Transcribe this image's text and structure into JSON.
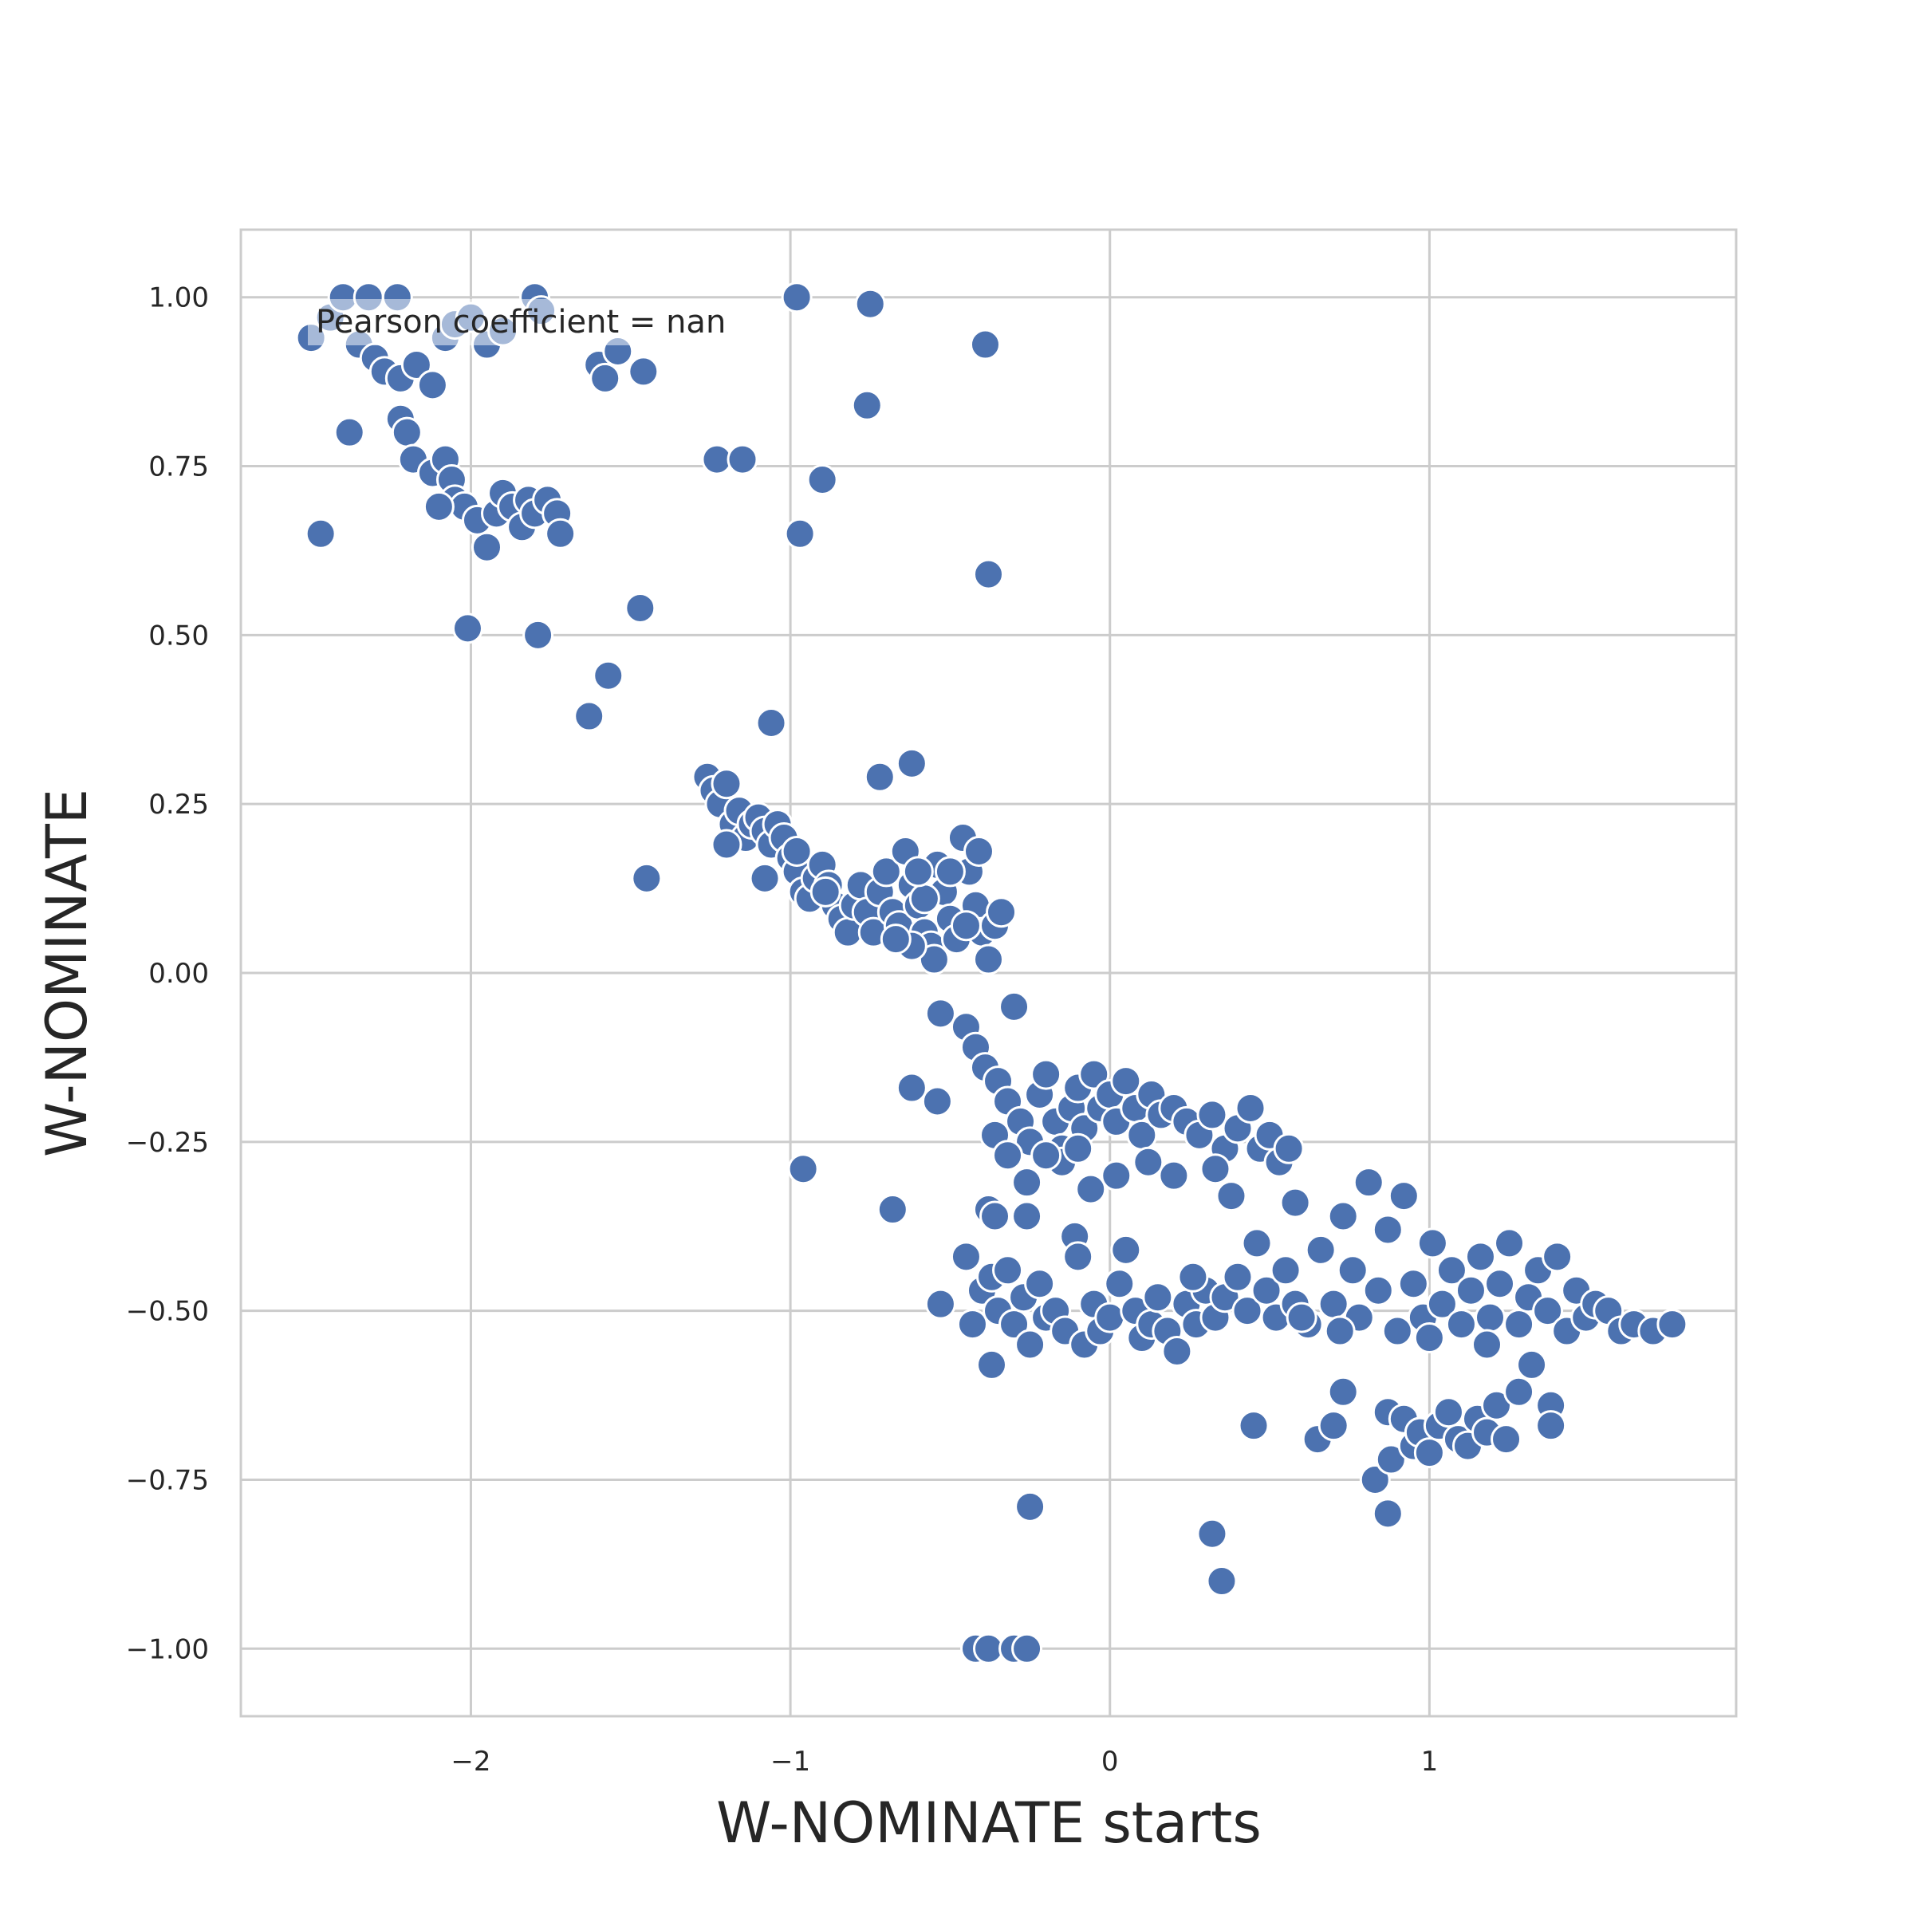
{
  "chart_data": {
    "type": "scatter",
    "xlabel": "W-NOMINATE starts",
    "ylabel": "W-NOMINATE",
    "annotation": "Pearson coefficient = nan",
    "xlim": [
      -2.72,
      1.96
    ],
    "ylim": [
      -1.1,
      1.1
    ],
    "xticks": [
      -2,
      -1,
      0,
      1
    ],
    "xtick_labels": [
      "−2",
      "−1",
      "0",
      "1"
    ],
    "yticks": [
      1.0,
      0.75,
      0.5,
      0.25,
      0.0,
      -0.25,
      -0.5,
      -0.75,
      -1.0
    ],
    "ytick_labels": [
      "1.00",
      "0.75",
      "0.50",
      "0.25",
      "0.00",
      "−0.25",
      "−0.50",
      "−0.75",
      "−1.00"
    ],
    "grid": true,
    "colors": {
      "points": "#4c72b0",
      "grid": "#cccccc",
      "axes_frame": "#cccccc",
      "text": "#262626"
    },
    "points": [
      [
        -2.5,
        0.94
      ],
      [
        -2.44,
        0.97
      ],
      [
        -2.4,
        1.0
      ],
      [
        -2.32,
        1.0
      ],
      [
        -2.23,
        1.0
      ],
      [
        -2.35,
        0.93
      ],
      [
        -2.3,
        0.91
      ],
      [
        -2.27,
        0.89
      ],
      [
        -2.22,
        0.88
      ],
      [
        -2.17,
        0.9
      ],
      [
        -2.12,
        0.87
      ],
      [
        -2.08,
        0.94
      ],
      [
        -2.05,
        0.96
      ],
      [
        -2.0,
        0.97
      ],
      [
        -1.95,
        0.93
      ],
      [
        -1.9,
        0.95
      ],
      [
        -1.8,
        1.0
      ],
      [
        -1.78,
        0.98
      ],
      [
        -2.38,
        0.8
      ],
      [
        -2.47,
        0.65
      ],
      [
        -2.22,
        0.82
      ],
      [
        -2.2,
        0.8
      ],
      [
        -2.18,
        0.76
      ],
      [
        -2.12,
        0.74
      ],
      [
        -2.08,
        0.76
      ],
      [
        -2.06,
        0.73
      ],
      [
        -2.05,
        0.7
      ],
      [
        -2.02,
        0.69
      ],
      [
        -1.98,
        0.67
      ],
      [
        -1.95,
        0.63
      ],
      [
        -1.92,
        0.68
      ],
      [
        -1.9,
        0.71
      ],
      [
        -1.87,
        0.69
      ],
      [
        -1.84,
        0.66
      ],
      [
        -1.82,
        0.7
      ],
      [
        -1.8,
        0.68
      ],
      [
        -1.76,
        0.7
      ],
      [
        -1.73,
        0.68
      ],
      [
        -1.72,
        0.65
      ],
      [
        -2.1,
        0.69
      ],
      [
        -2.01,
        0.51
      ],
      [
        -1.79,
        0.5
      ],
      [
        -1.6,
        0.9
      ],
      [
        -1.58,
        0.88
      ],
      [
        -1.54,
        0.92
      ],
      [
        -1.46,
        0.89
      ],
      [
        -1.47,
        0.54
      ],
      [
        -1.57,
        0.44
      ],
      [
        -1.63,
        0.38
      ],
      [
        -1.45,
        0.14
      ],
      [
        -0.98,
        1.0
      ],
      [
        -0.75,
        0.99
      ],
      [
        -0.39,
        0.93
      ],
      [
        -0.76,
        0.84
      ],
      [
        -1.23,
        0.76
      ],
      [
        -1.15,
        0.76
      ],
      [
        -0.9,
        0.73
      ],
      [
        -0.97,
        0.65
      ],
      [
        -0.38,
        0.59
      ],
      [
        -1.06,
        0.37
      ],
      [
        -0.62,
        0.31
      ],
      [
        -0.72,
        0.29
      ],
      [
        -0.96,
        -0.29
      ],
      [
        -0.68,
        -0.35
      ],
      [
        -1.26,
        0.29
      ],
      [
        -1.24,
        0.27
      ],
      [
        -1.22,
        0.25
      ],
      [
        -1.2,
        0.28
      ],
      [
        -1.18,
        0.22
      ],
      [
        -1.16,
        0.24
      ],
      [
        -1.14,
        0.2
      ],
      [
        -1.12,
        0.22
      ],
      [
        -1.1,
        0.23
      ],
      [
        -1.08,
        0.21
      ],
      [
        -1.06,
        0.19
      ],
      [
        -1.04,
        0.22
      ],
      [
        -1.02,
        0.2
      ],
      [
        -1.0,
        0.17
      ],
      [
        -0.98,
        0.15
      ],
      [
        -0.96,
        0.12
      ],
      [
        -0.94,
        0.11
      ],
      [
        -0.92,
        0.14
      ],
      [
        -0.9,
        0.16
      ],
      [
        -0.88,
        0.13
      ],
      [
        -0.86,
        0.1
      ],
      [
        -0.84,
        0.08
      ],
      [
        -0.82,
        0.06
      ],
      [
        -0.8,
        0.1
      ],
      [
        -0.78,
        0.13
      ],
      [
        -0.76,
        0.09
      ],
      [
        -0.74,
        0.06
      ],
      [
        -0.72,
        0.12
      ],
      [
        -0.7,
        0.15
      ],
      [
        -0.68,
        0.09
      ],
      [
        -0.66,
        0.07
      ],
      [
        -0.64,
        0.18
      ],
      [
        -0.62,
        0.13
      ],
      [
        -0.6,
        0.1
      ],
      [
        -0.58,
        0.06
      ],
      [
        -0.56,
        0.04
      ],
      [
        -0.54,
        0.16
      ],
      [
        -0.52,
        0.12
      ],
      [
        -0.5,
        0.08
      ],
      [
        -0.48,
        0.05
      ],
      [
        -0.46,
        0.2
      ],
      [
        -0.44,
        0.15
      ],
      [
        -0.42,
        0.1
      ],
      [
        -0.4,
        0.06
      ],
      [
        -0.38,
        0.02
      ],
      [
        -0.36,
        0.07
      ],
      [
        -0.34,
        0.09
      ],
      [
        -0.41,
        0.18
      ],
      [
        -0.55,
        0.02
      ],
      [
        -0.62,
        0.04
      ],
      [
        -0.67,
        0.05
      ],
      [
        -0.58,
        0.11
      ],
      [
        -0.5,
        0.15
      ],
      [
        -0.45,
        0.07
      ],
      [
        -0.6,
        0.15
      ],
      [
        -1.08,
        0.14
      ],
      [
        -1.2,
        0.19
      ],
      [
        -0.98,
        0.18
      ],
      [
        -0.89,
        0.12
      ],
      [
        -0.53,
        -0.06
      ],
      [
        -0.45,
        -0.08
      ],
      [
        -0.42,
        -0.11
      ],
      [
        -0.39,
        -0.14
      ],
      [
        -0.35,
        -0.16
      ],
      [
        -0.3,
        -0.05
      ],
      [
        -0.32,
        -0.19
      ],
      [
        -0.28,
        -0.22
      ],
      [
        -0.25,
        -0.25
      ],
      [
        -0.22,
        -0.18
      ],
      [
        -0.2,
        -0.15
      ],
      [
        -0.17,
        -0.22
      ],
      [
        -0.15,
        -0.26
      ],
      [
        -0.12,
        -0.2
      ],
      [
        -0.1,
        -0.17
      ],
      [
        -0.08,
        -0.23
      ],
      [
        -0.05,
        -0.15
      ],
      [
        -0.03,
        -0.2
      ],
      [
        0.0,
        -0.18
      ],
      [
        0.02,
        -0.22
      ],
      [
        0.05,
        -0.16
      ],
      [
        0.08,
        -0.2
      ],
      [
        0.1,
        -0.24
      ],
      [
        0.13,
        -0.18
      ],
      [
        0.16,
        -0.21
      ],
      [
        0.2,
        -0.2
      ],
      [
        0.24,
        -0.22
      ],
      [
        0.28,
        -0.24
      ],
      [
        0.32,
        -0.21
      ],
      [
        0.36,
        -0.26
      ],
      [
        0.4,
        -0.23
      ],
      [
        0.44,
        -0.2
      ],
      [
        0.47,
        -0.26
      ],
      [
        0.5,
        -0.24
      ],
      [
        0.53,
        -0.28
      ],
      [
        0.56,
        -0.26
      ],
      [
        0.58,
        -0.34
      ],
      [
        0.38,
        -0.33
      ],
      [
        0.33,
        -0.29
      ],
      [
        0.2,
        -0.3
      ],
      [
        0.12,
        -0.28
      ],
      [
        0.02,
        -0.3
      ],
      [
        -0.06,
        -0.32
      ],
      [
        -0.38,
        -0.35
      ],
      [
        -0.36,
        -0.36
      ],
      [
        -0.26,
        -0.36
      ],
      [
        -0.26,
        -0.31
      ],
      [
        -0.36,
        -0.24
      ],
      [
        -0.32,
        -0.27
      ],
      [
        -0.15,
        -0.28
      ],
      [
        -0.62,
        -0.17
      ],
      [
        -0.54,
        -0.19
      ],
      [
        -0.2,
        -0.27
      ],
      [
        -0.1,
        -0.26
      ],
      [
        -0.45,
        -0.42
      ],
      [
        -0.43,
        -0.52
      ],
      [
        -0.4,
        -0.47
      ],
      [
        -0.37,
        -0.45
      ],
      [
        -0.35,
        -0.5
      ],
      [
        -0.32,
        -0.44
      ],
      [
        -0.3,
        -0.52
      ],
      [
        -0.27,
        -0.48
      ],
      [
        -0.25,
        -0.55
      ],
      [
        -0.22,
        -0.46
      ],
      [
        -0.2,
        -0.51
      ],
      [
        -0.17,
        -0.5
      ],
      [
        -0.14,
        -0.53
      ],
      [
        -0.11,
        -0.39
      ],
      [
        -0.1,
        -0.42
      ],
      [
        -0.08,
        -0.55
      ],
      [
        -0.05,
        -0.49
      ],
      [
        -0.03,
        -0.53
      ],
      [
        0.0,
        -0.51
      ],
      [
        0.03,
        -0.46
      ],
      [
        0.05,
        -0.41
      ],
      [
        0.08,
        -0.5
      ],
      [
        0.1,
        -0.54
      ],
      [
        0.13,
        -0.52
      ],
      [
        0.15,
        -0.48
      ],
      [
        0.18,
        -0.53
      ],
      [
        0.21,
        -0.56
      ],
      [
        0.24,
        -0.49
      ],
      [
        0.27,
        -0.52
      ],
      [
        0.3,
        -0.47
      ],
      [
        0.33,
        -0.51
      ],
      [
        0.36,
        -0.48
      ],
      [
        0.4,
        -0.45
      ],
      [
        0.43,
        -0.5
      ],
      [
        0.46,
        -0.4
      ],
      [
        0.49,
        -0.47
      ],
      [
        0.52,
        -0.51
      ],
      [
        0.55,
        -0.44
      ],
      [
        0.58,
        -0.49
      ],
      [
        0.62,
        -0.52
      ],
      [
        0.66,
        -0.41
      ],
      [
        0.7,
        -0.49
      ],
      [
        0.73,
        -0.36
      ],
      [
        0.76,
        -0.44
      ],
      [
        0.78,
        -0.51
      ],
      [
        0.81,
        -0.31
      ],
      [
        0.84,
        -0.47
      ],
      [
        0.87,
        -0.38
      ],
      [
        0.9,
        -0.53
      ],
      [
        0.92,
        -0.33
      ],
      [
        0.95,
        -0.46
      ],
      [
        0.98,
        -0.51
      ],
      [
        1.01,
        -0.4
      ],
      [
        1.04,
        -0.49
      ],
      [
        1.07,
        -0.44
      ],
      [
        1.1,
        -0.52
      ],
      [
        1.13,
        -0.47
      ],
      [
        1.16,
        -0.42
      ],
      [
        1.19,
        -0.51
      ],
      [
        1.22,
        -0.46
      ],
      [
        1.25,
        -0.4
      ],
      [
        1.28,
        -0.52
      ],
      [
        1.31,
        -0.48
      ],
      [
        1.34,
        -0.44
      ],
      [
        1.37,
        -0.5
      ],
      [
        1.4,
        -0.42
      ],
      [
        1.43,
        -0.53
      ],
      [
        1.46,
        -0.47
      ],
      [
        1.49,
        -0.51
      ],
      [
        1.52,
        -0.49
      ],
      [
        1.56,
        -0.5
      ],
      [
        1.6,
        -0.53
      ],
      [
        1.64,
        -0.52
      ],
      [
        1.7,
        -0.53
      ],
      [
        1.76,
        -0.52
      ],
      [
        -0.53,
        -0.49
      ],
      [
        -0.37,
        -0.58
      ],
      [
        0.26,
        -0.45
      ],
      [
        0.6,
        -0.51
      ],
      [
        0.72,
        -0.53
      ],
      [
        1.0,
        -0.54
      ],
      [
        1.18,
        -0.55
      ],
      [
        1.32,
        -0.58
      ],
      [
        -0.25,
        -0.79
      ],
      [
        0.32,
        -0.83
      ],
      [
        0.35,
        -0.9
      ],
      [
        0.45,
        -0.67
      ],
      [
        0.65,
        -0.69
      ],
      [
        0.7,
        -0.67
      ],
      [
        0.73,
        -0.62
      ],
      [
        0.83,
        -0.75
      ],
      [
        0.87,
        -0.8
      ],
      [
        0.87,
        -0.65
      ],
      [
        0.88,
        -0.72
      ],
      [
        0.92,
        -0.66
      ],
      [
        0.95,
        -0.7
      ],
      [
        0.97,
        -0.68
      ],
      [
        1.0,
        -0.71
      ],
      [
        1.03,
        -0.67
      ],
      [
        1.06,
        -0.65
      ],
      [
        1.09,
        -0.69
      ],
      [
        1.12,
        -0.7
      ],
      [
        1.15,
        -0.66
      ],
      [
        1.18,
        -0.68
      ],
      [
        1.21,
        -0.64
      ],
      [
        1.24,
        -0.69
      ],
      [
        1.28,
        -0.62
      ],
      [
        1.38,
        -0.64
      ],
      [
        1.38,
        -0.67
      ],
      [
        -0.42,
        -1.0
      ],
      [
        -0.38,
        -1.0
      ],
      [
        -0.3,
        -1.0
      ],
      [
        -0.26,
        -1.0
      ]
    ]
  }
}
